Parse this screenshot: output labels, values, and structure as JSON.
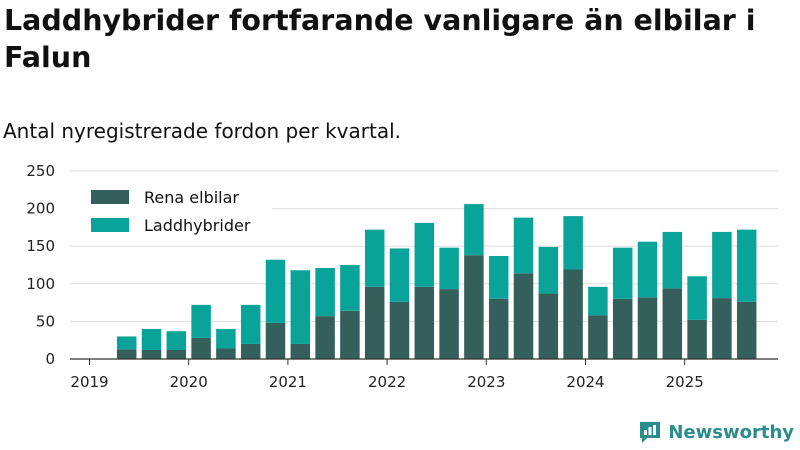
{
  "title": "Laddhybrider fortfarande vanligare än elbilar i Falun",
  "subtitle": "Antal nyregistrerade fordon per kvartal.",
  "brand": "Newsworthy",
  "colors": {
    "rena": "#355f5b",
    "ladd": "#0aa39a",
    "grid": "#dddddd",
    "axis": "#333333"
  },
  "chart_data": {
    "type": "bar",
    "stacked": true,
    "title": "Laddhybrider fortfarande vanligare än elbilar i Falun",
    "subtitle": "Antal nyregistrerade fordon per kvartal.",
    "xlabel": "",
    "ylabel": "",
    "ylim": [
      0,
      250
    ],
    "yticks": [
      0,
      50,
      100,
      150,
      200,
      250
    ],
    "xticks": [
      "2019",
      "2020",
      "2021",
      "2022",
      "2023",
      "2024",
      "2025"
    ],
    "legend_position": "top-left",
    "categories": [
      "2019 Q2",
      "2019 Q3",
      "2019 Q4",
      "2020 Q1",
      "2020 Q2",
      "2020 Q3",
      "2020 Q4",
      "2021 Q1",
      "2021 Q2",
      "2021 Q3",
      "2021 Q4",
      "2022 Q1",
      "2022 Q2",
      "2022 Q3",
      "2022 Q4",
      "2023 Q1",
      "2023 Q2",
      "2023 Q3",
      "2023 Q4",
      "2024 Q1",
      "2024 Q2",
      "2024 Q3",
      "2024 Q4",
      "2025 Q1",
      "2025 Q2",
      "2025 Q3"
    ],
    "series": [
      {
        "name": "Rena elbilar",
        "values": [
          13,
          12,
          12,
          28,
          14,
          20,
          48,
          20,
          57,
          64,
          96,
          76,
          96,
          93,
          138,
          80,
          114,
          87,
          119,
          58,
          80,
          82,
          94,
          52,
          81,
          76
        ]
      },
      {
        "name": "Laddhybrider",
        "values": [
          17,
          28,
          25,
          44,
          26,
          52,
          84,
          98,
          64,
          61,
          76,
          71,
          85,
          55,
          68,
          57,
          74,
          62,
          71,
          38,
          68,
          74,
          75,
          58,
          88,
          96
        ]
      }
    ]
  }
}
